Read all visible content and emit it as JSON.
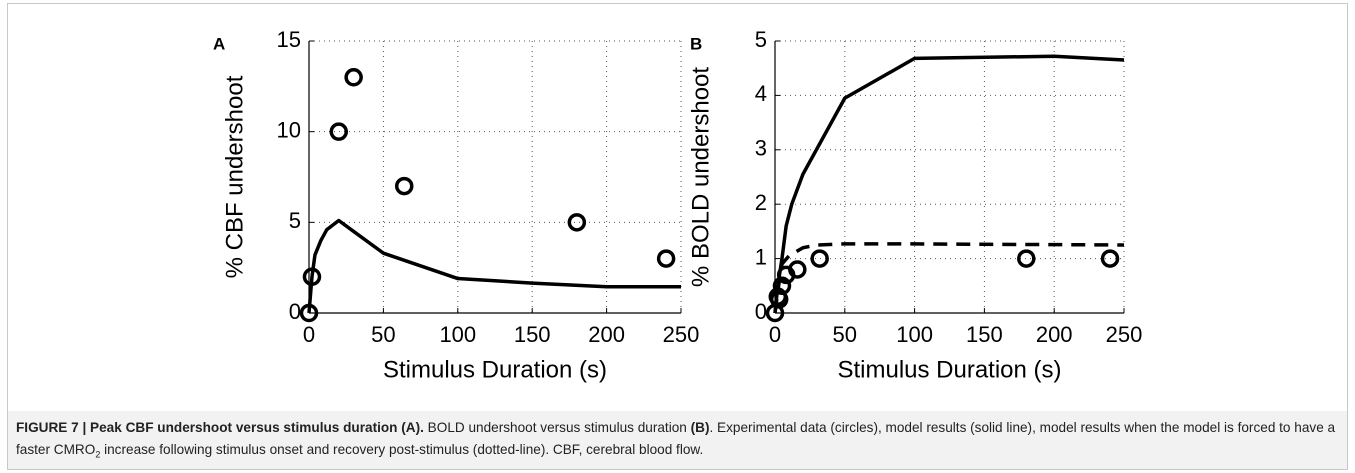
{
  "chart_data": [
    {
      "type": "line",
      "panel": "A",
      "ylabel": "% CBF undershoot",
      "xlabel": "Stimulus Duration (s)",
      "xlim": [
        0,
        250
      ],
      "xticks": [
        0,
        50,
        100,
        150,
        200,
        250
      ],
      "ylim": [
        0,
        15
      ],
      "yticks": [
        0,
        5,
        10,
        15
      ],
      "grid": true,
      "series": [
        {
          "style": "markers",
          "color": "#000000",
          "x": [
            0,
            2,
            20,
            30,
            64,
            180,
            240
          ],
          "values": [
            0,
            2,
            10,
            13,
            7,
            5,
            3
          ]
        },
        {
          "style": "solid",
          "color": "#000000",
          "x": [
            0,
            2,
            4,
            8,
            12,
            20,
            30,
            50,
            100,
            150,
            200,
            250
          ],
          "values": [
            0,
            2,
            3.2,
            4.0,
            4.6,
            5.1,
            4.5,
            3.3,
            1.9,
            1.65,
            1.45,
            1.45
          ]
        }
      ]
    },
    {
      "type": "line",
      "panel": "B",
      "ylabel": "% BOLD undershoot",
      "xlabel": "Stimulus Duration (s)",
      "xlim": [
        0,
        250
      ],
      "xticks": [
        0,
        50,
        100,
        150,
        200,
        250
      ],
      "ylim": [
        0,
        5
      ],
      "yticks": [
        0,
        1,
        2,
        3,
        4,
        5
      ],
      "grid": true,
      "series": [
        {
          "style": "markers",
          "color": "#000000",
          "x": [
            0,
            2,
            3,
            5,
            8,
            16,
            32,
            180,
            240
          ],
          "values": [
            0,
            0.3,
            0.25,
            0.5,
            0.7,
            0.8,
            1.0,
            1.0,
            1.0
          ]
        },
        {
          "style": "solid",
          "color": "#000000",
          "x": [
            0,
            2,
            5,
            8,
            12,
            20,
            50,
            100,
            200,
            250
          ],
          "values": [
            0,
            0.5,
            1.0,
            1.6,
            2.0,
            2.55,
            3.95,
            4.68,
            4.72,
            4.65
          ]
        },
        {
          "style": "dashed",
          "color": "#000000",
          "x": [
            0,
            2,
            5,
            10,
            20,
            30,
            50,
            100,
            250
          ],
          "values": [
            0,
            0.4,
            0.9,
            1.05,
            1.2,
            1.25,
            1.27,
            1.27,
            1.25
          ]
        }
      ]
    }
  ],
  "caption": [
    {
      "style": "bold",
      "text": "FIGURE 7 | Peak CBF undershoot versus stimulus duration (A)."
    },
    {
      "style": "normal",
      "text": " BOLD undershoot versus stimulus duration "
    },
    {
      "style": "bold",
      "text": "(B)"
    },
    {
      "style": "normal",
      "text": ". Experimental data (circles), model results (solid line), model results when the model is forced to have a faster CMRO"
    },
    {
      "style": "sub",
      "text": "2"
    },
    {
      "style": "normal",
      "text": " increase following stimulus onset and recovery post-stimulus (dotted-line). CBF, cerebral blood flow."
    }
  ]
}
